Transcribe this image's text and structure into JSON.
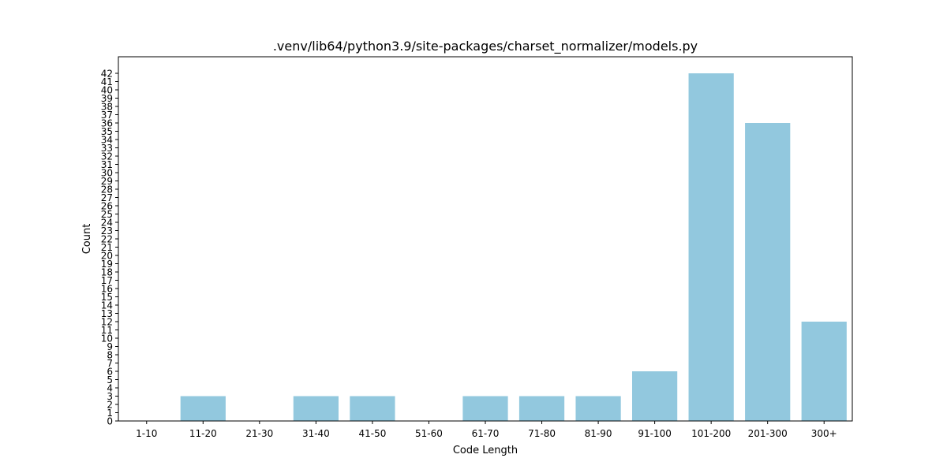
{
  "chart_data": {
    "type": "bar",
    "title": ".venv/lib64/python3.9/site-packages/charset_normalizer/models.py",
    "xlabel": "Code Length",
    "ylabel": "Count",
    "categories": [
      "1-10",
      "11-20",
      "21-30",
      "31-40",
      "41-50",
      "51-60",
      "61-70",
      "71-80",
      "81-90",
      "91-100",
      "101-200",
      "201-300",
      "300+"
    ],
    "values": [
      0,
      3,
      0,
      3,
      3,
      0,
      3,
      3,
      3,
      6,
      42,
      36,
      12
    ],
    "ylim": [
      0,
      44
    ],
    "yticks": [
      0,
      1,
      2,
      3,
      4,
      5,
      6,
      7,
      8,
      9,
      10,
      11,
      12,
      13,
      14,
      15,
      16,
      17,
      18,
      19,
      20,
      21,
      22,
      23,
      24,
      25,
      26,
      27,
      28,
      29,
      30,
      31,
      32,
      33,
      34,
      35,
      36,
      37,
      38,
      39,
      40,
      41,
      42
    ],
    "bar_color": "#92c8de",
    "grid": false,
    "legend": "none"
  }
}
